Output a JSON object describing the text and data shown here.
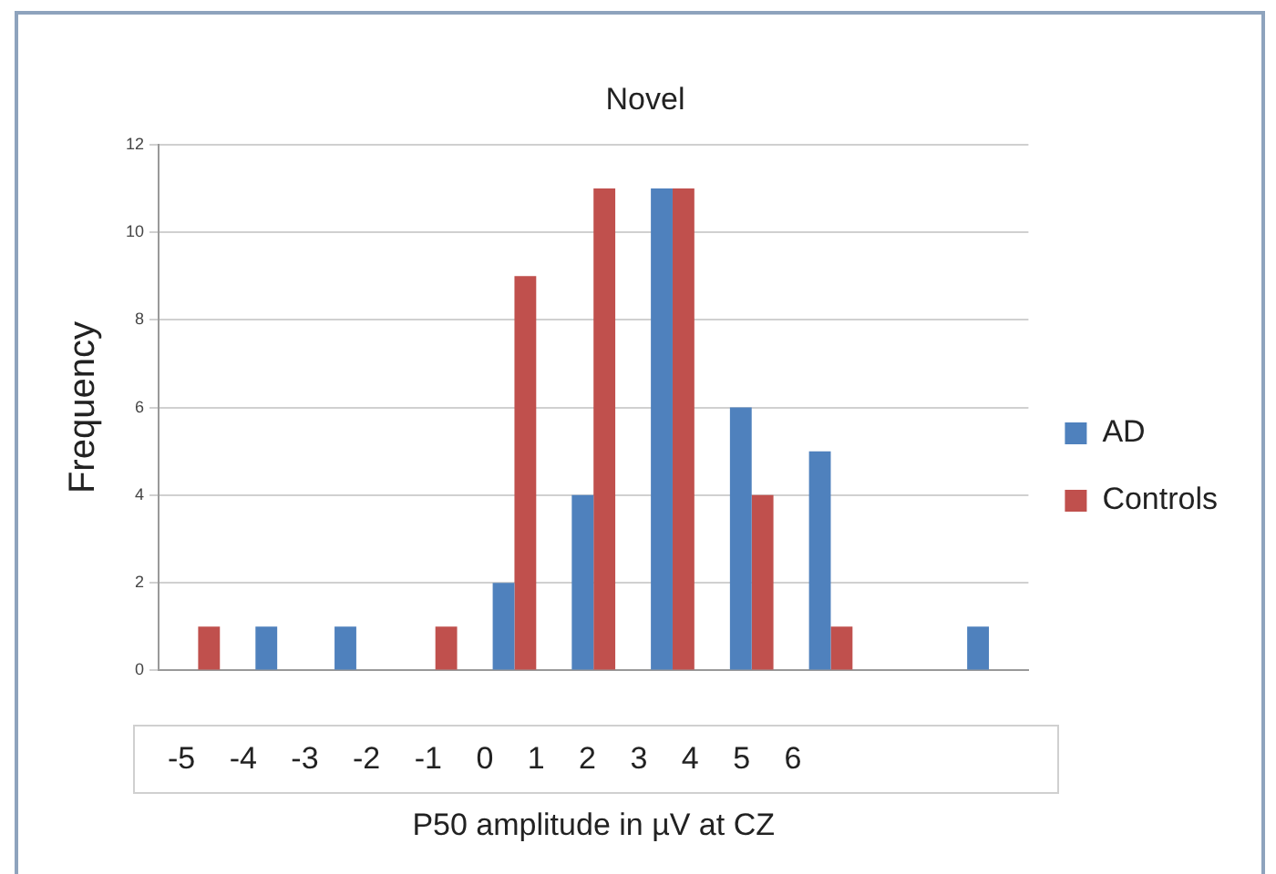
{
  "chart_data": {
    "type": "bar",
    "title": "Novel",
    "xlabel": "P50 amplitude in µV at CZ",
    "ylabel": "Frequency",
    "categories": [
      null,
      null,
      null,
      null,
      null,
      null,
      null,
      null,
      null,
      null,
      null
    ],
    "series": [
      {
        "name": "AD",
        "color": "#4f81bd",
        "values": [
          0,
          1,
          1,
          0,
          2,
          4,
          11,
          6,
          5,
          0,
          1
        ]
      },
      {
        "name": "Controls",
        "color": "#c0504d",
        "values": [
          1,
          0,
          0,
          1,
          9,
          11,
          11,
          4,
          1,
          0,
          0
        ]
      }
    ],
    "ylim": [
      0,
      12
    ],
    "yticks": [
      0,
      2,
      4,
      6,
      8,
      10,
      12
    ],
    "grid": "y",
    "legend": "right",
    "annotations": [
      "-5 -4 -3 -2 -1 0 1 2 3 4 5 6"
    ]
  }
}
